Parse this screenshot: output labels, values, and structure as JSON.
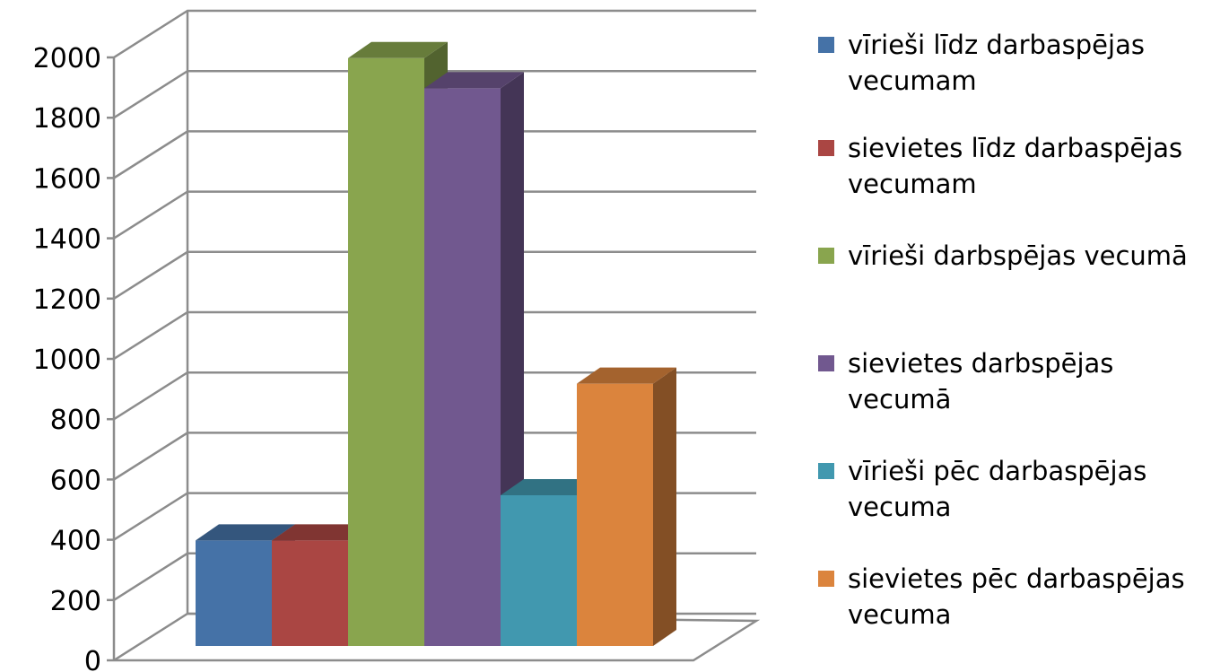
{
  "chart_data": {
    "type": "bar",
    "title": "",
    "xlabel": "",
    "ylabel": "",
    "ylim": [
      0,
      2000
    ],
    "yticks": [
      0,
      200,
      400,
      600,
      800,
      1000,
      1200,
      1400,
      1600,
      1800,
      2000
    ],
    "grid": true,
    "three_d": true,
    "legend_position": "right",
    "series": [
      {
        "name": "vīrieši līdz darbaspējas vecumam",
        "value": 350,
        "color": "#4572A7"
      },
      {
        "name": "sievietes līdz darbaspējas vecumam",
        "value": 350,
        "color": "#AA4643"
      },
      {
        "name": "vīrieši darbspējas vecumā",
        "value": 1950,
        "color": "#89A54E"
      },
      {
        "name": "sievietes darbspējas vecumā",
        "value": 1850,
        "color": "#71588F"
      },
      {
        "name": "vīrieši pēc darbaspējas vecuma",
        "value": 500,
        "color": "#4198AF"
      },
      {
        "name": "sievietes pēc darbaspējas vecuma",
        "value": 870,
        "color": "#DB843D"
      }
    ]
  }
}
